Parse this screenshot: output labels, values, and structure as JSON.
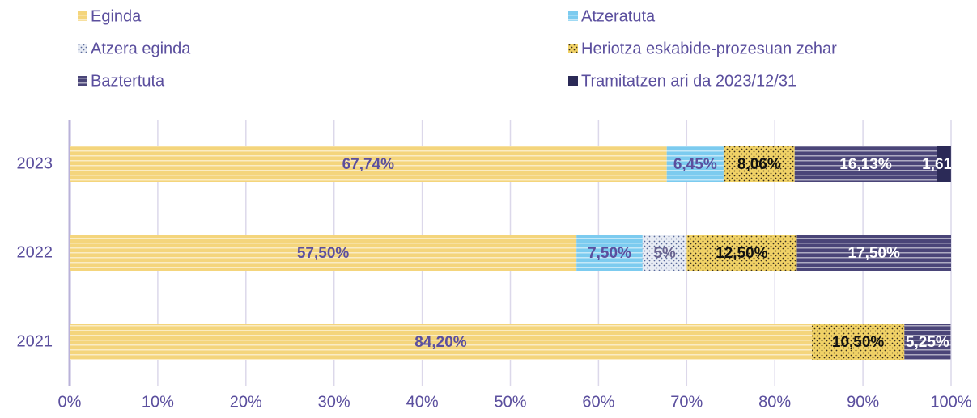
{
  "chart_data": {
    "type": "stacked_barh",
    "categories": [
      "2023",
      "2022",
      "2021"
    ],
    "series": [
      {
        "name": "Eginda",
        "color": "#f4d57c",
        "label_color": "#5b4f9e",
        "values": [
          67.74,
          57.5,
          84.2
        ],
        "value_labels": [
          "67,74%",
          "57,50%",
          "84,20%"
        ]
      },
      {
        "name": "Atzeratuta",
        "color": "#7ccbef",
        "label_color": "#5b4f9e",
        "values": [
          6.45,
          7.5,
          null
        ],
        "value_labels": [
          "6,45%",
          "7,50%",
          null
        ]
      },
      {
        "name": "Atzera eginda",
        "color": "#e8ecf4",
        "label_color": "#6a6490",
        "values": [
          null,
          5,
          null
        ],
        "value_labels": [
          null,
          "5%",
          null
        ]
      },
      {
        "name": "Heriotza eskabide-prozesuan zehar",
        "color": "#f1d266",
        "label_color": "#111111",
        "values": [
          8.06,
          12.5,
          10.5
        ],
        "value_labels": [
          "8,06%",
          "12,50%",
          "10,50%"
        ]
      },
      {
        "name": "Baztertuta",
        "color": "#4a4578",
        "label_color": "#ffffff",
        "values": [
          16.13,
          17.5,
          5.25
        ],
        "value_labels": [
          "16,13%",
          "17,50%",
          "5,25%"
        ]
      },
      {
        "name": "Tramitatzen ari da 2023/12/31",
        "color": "#2b2a57",
        "label_color": "#ffffff",
        "values": [
          1.61,
          null,
          null
        ],
        "value_labels": [
          "1,61%",
          null,
          null
        ]
      }
    ],
    "xlim": [
      0,
      100
    ],
    "xticks": [
      {
        "value": 0,
        "label": "0%"
      },
      {
        "value": 10,
        "label": "10%"
      },
      {
        "value": 20,
        "label": "20%"
      },
      {
        "value": 30,
        "label": "30%"
      },
      {
        "value": 40,
        "label": "40%"
      },
      {
        "value": 50,
        "label": "50%"
      },
      {
        "value": 60,
        "label": "60%"
      },
      {
        "value": 70,
        "label": "70%"
      },
      {
        "value": 80,
        "label": "80%"
      },
      {
        "value": 90,
        "label": "90%"
      },
      {
        "value": 100,
        "label": "100%"
      }
    ],
    "grid": true
  }
}
